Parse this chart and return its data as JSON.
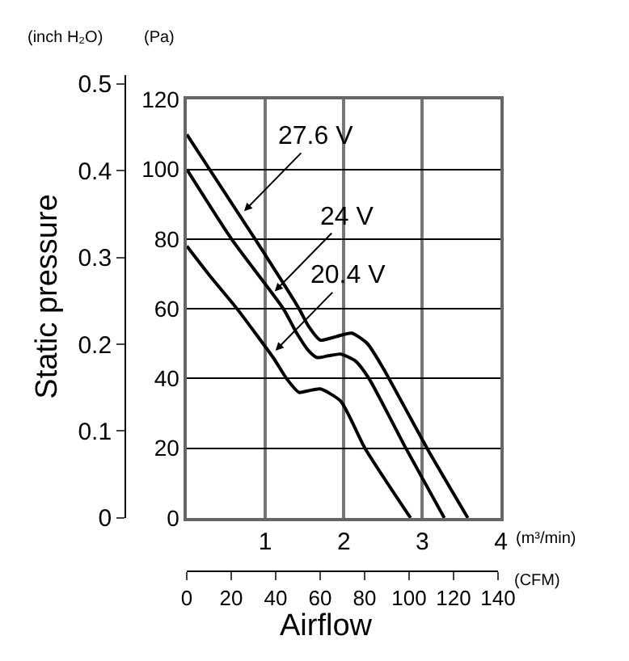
{
  "chart_data": {
    "type": "line",
    "xlabel": "Airflow",
    "y2label": "Static pressure",
    "xlim": [
      0,
      4
    ],
    "xticks": [
      1,
      2,
      3,
      4
    ],
    "ylim": [
      0,
      120
    ],
    "yticks": [
      0,
      20,
      40,
      60,
      80,
      100,
      120
    ],
    "x2lim": [
      0,
      140
    ],
    "x2ticks": [
      0,
      20,
      40,
      60,
      80,
      100,
      120,
      140
    ],
    "y2lim": [
      0,
      0.51
    ],
    "y2ticks": [
      0,
      0.1,
      0.2,
      0.3,
      0.4,
      0.5
    ],
    "grid": true,
    "marker": "none",
    "line_style": "solid",
    "series": [
      {
        "color": "#000000",
        "x": [
          0,
          0.87,
          1.43,
          1.55,
          1.7,
          1.9,
          2.1,
          2.3,
          2.5,
          3.06,
          3.58
        ],
        "values": [
          110,
          80,
          60,
          55,
          51,
          52,
          53,
          50,
          43,
          20,
          0
        ]
      },
      {
        "color": "#000000",
        "x": [
          0,
          0.57,
          1.23,
          1.4,
          1.55,
          1.66,
          1.8,
          1.96,
          2.15,
          2.32,
          2.79,
          3.28
        ],
        "values": [
          100,
          80,
          60,
          53,
          48,
          46,
          46.5,
          47,
          45,
          40,
          20,
          0
        ]
      },
      {
        "color": "#000000",
        "x": [
          0,
          0.31,
          0.64,
          1.1,
          1.27,
          1.43,
          1.55,
          1.7,
          1.96,
          2.27,
          2.85
        ],
        "values": [
          78,
          69,
          60,
          46,
          40,
          36,
          36.5,
          37,
          33.5,
          20,
          0
        ]
      }
    ],
    "annotations": [
      {
        "text": "27.6 V",
        "x": 0.73,
        "y": 88
      },
      {
        "text": "24 V",
        "x": 1.12,
        "y": 65
      },
      {
        "text": "20.4 V",
        "x": 1.13,
        "y": 48
      },
      "(inch H₂O)",
      "(Pa)",
      "(m³/min)",
      "(CFM)"
    ]
  }
}
